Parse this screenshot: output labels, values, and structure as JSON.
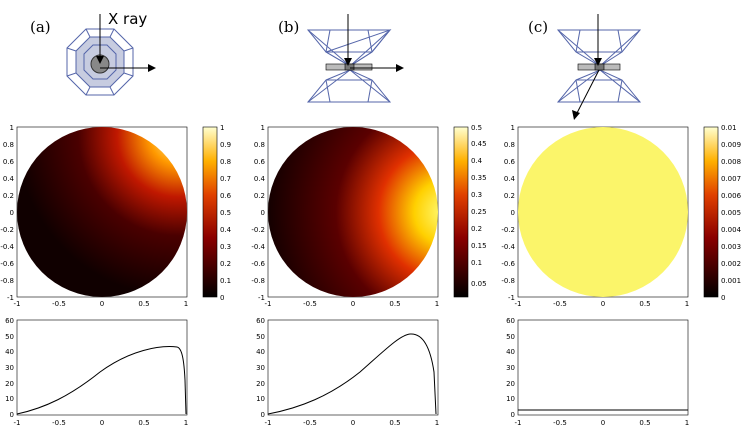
{
  "panels": [
    {
      "label": "(a)",
      "schematic": "octagonal-cell",
      "xray_label": "X ray",
      "map": {
        "colorbar_max": 1,
        "colorbar_ticks": [
          "1",
          "0.9",
          "0.8",
          "0.7",
          "0.6",
          "0.5",
          "0.4",
          "0.3",
          "0.2",
          "0.1",
          "0"
        ],
        "fill": "gradient-right-corner"
      },
      "profile_peak": 43
    },
    {
      "label": "(b)",
      "schematic": "diamond-anvil-cell",
      "map": {
        "colorbar_max": 0.5,
        "colorbar_ticks": [
          "0.5",
          "0.45",
          "0.4",
          "0.35",
          "0.3",
          "0.25",
          "0.2",
          "0.15",
          "0.1",
          "0.05"
        ],
        "fill": "gradient-right"
      },
      "profile_peak": 52
    },
    {
      "label": "(c)",
      "schematic": "diamond-anvil-cell-angled",
      "map": {
        "colorbar_max": 0.01,
        "colorbar_ticks": [
          "0.01",
          "0.009",
          "0.008",
          "0.007",
          "0.006",
          "0.005",
          "0.004",
          "0.003",
          "0.002",
          "0.001",
          "0"
        ],
        "fill": "uniform-yellow"
      },
      "profile_peak": 3
    }
  ],
  "map_axis": {
    "y_ticks": [
      "1",
      "0.8",
      "0.6",
      "0.4",
      "0.2",
      "0",
      "-0.2",
      "-0.4",
      "-0.6",
      "-0.8",
      "-1"
    ],
    "x_ticks": [
      "-1",
      "-0.5",
      "0",
      "0.5",
      "1"
    ]
  },
  "profile_axis": {
    "y_ticks": [
      "60",
      "50",
      "40",
      "30",
      "20",
      "10",
      "0"
    ],
    "x_ticks": [
      "-1",
      "-0.5",
      "0",
      "0.5",
      "1"
    ]
  },
  "colors": {
    "hot_dark": "#1a0000",
    "hot_red": "#cc2200",
    "hot_yellow": "#ffff55",
    "uniform": "#fbf56a",
    "cell_blue": "#5566aa"
  }
}
